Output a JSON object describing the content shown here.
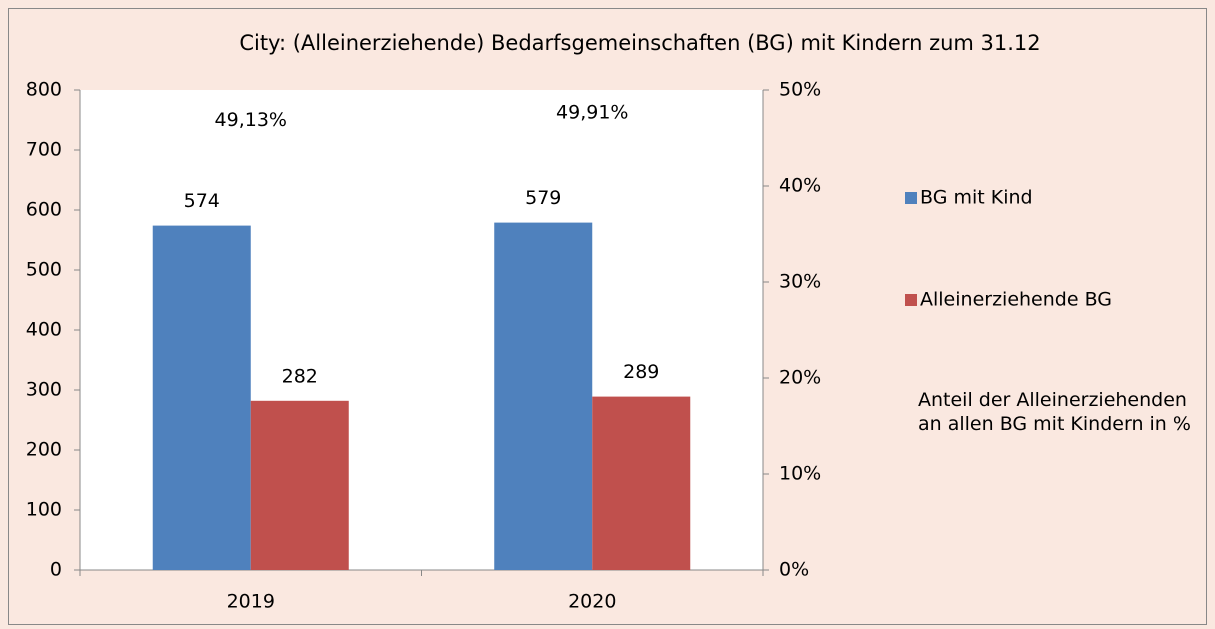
{
  "chart_data": {
    "type": "bar",
    "title": "City: (Alleinerziehende) Bedarfsgemeinschaften (BG) mit Kindern zum 31.12",
    "categories": [
      "2019",
      "2020"
    ],
    "series": [
      {
        "name": "BG mit Kind",
        "color": "#4f81bd",
        "values": [
          574,
          579
        ]
      },
      {
        "name": "Alleinerziehende BG",
        "color": "#c0504d",
        "values": [
          282,
          289
        ]
      },
      {
        "name": "Anteil der Alleinerziehenden an allen BG mit Kindern in %",
        "axis": "y2",
        "values": [
          49.13,
          49.91
        ],
        "value_labels": [
          "49,13%",
          "49,91%"
        ]
      }
    ],
    "ylim": [
      0,
      800
    ],
    "yticks": [
      0,
      100,
      200,
      300,
      400,
      500,
      600,
      700,
      800
    ],
    "y2lim": [
      0,
      50
    ],
    "y2ticks": [
      {
        "value": 0,
        "label": "0%"
      },
      {
        "value": 10,
        "label": "10%"
      },
      {
        "value": 20,
        "label": "20%"
      },
      {
        "value": 30,
        "label": "30%"
      },
      {
        "value": 40,
        "label": "40%"
      },
      {
        "value": 50,
        "label": "50%"
      }
    ],
    "legend": "right"
  }
}
